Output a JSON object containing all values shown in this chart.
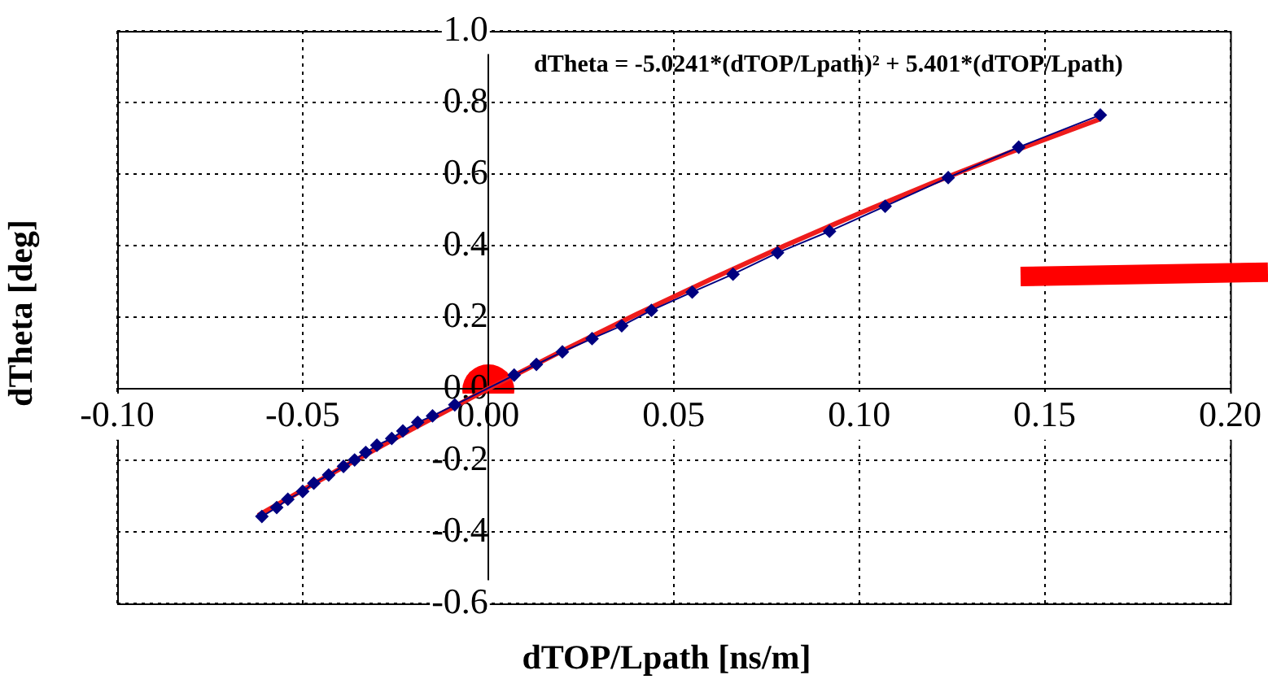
{
  "chart_data": {
    "type": "line",
    "xlabel": "dTOP/Lpath [ns/m]",
    "ylabel": "dTheta [deg]",
    "annotations": [
      "dTheta = -5.0241*(dTOP/Lpath)² + 5.401*(dTOP/Lpath)"
    ],
    "xlim": [
      -0.1,
      0.2
    ],
    "xticks": [
      {
        "value": -0.1,
        "label": "-0.10"
      },
      {
        "value": -0.05,
        "label": "-0.05"
      },
      {
        "value": 0,
        "label": "0.00"
      },
      {
        "value": 0.05,
        "label": "0.05"
      },
      {
        "value": 0.1,
        "label": "0.10"
      },
      {
        "value": 0.15,
        "label": "0.15"
      },
      {
        "value": 0.2,
        "label": "0.20"
      }
    ],
    "ylim": [
      -0.6,
      1.0
    ],
    "yticks": [
      {
        "value": -0.6,
        "label": "-0.6"
      },
      {
        "value": -0.4,
        "label": "-0.4"
      },
      {
        "value": -0.2,
        "label": "-0.2"
      },
      {
        "value": 0,
        "label": "0.0"
      },
      {
        "value": 0.2,
        "label": "0.2"
      },
      {
        "value": 0.4,
        "label": "0.4"
      },
      {
        "value": 0.6,
        "label": "0.6"
      },
      {
        "value": 0.8,
        "label": "0.8"
      },
      {
        "value": 1.0,
        "label": "1.0"
      }
    ],
    "grid": true,
    "legend": false,
    "marker": "diamond",
    "series": [
      {
        "color": "#000080",
        "x": [
          -0.061,
          -0.057,
          -0.054,
          -0.05,
          -0.047,
          -0.043,
          -0.039,
          -0.036,
          -0.033,
          -0.03,
          -0.026,
          -0.023,
          -0.019,
          -0.015,
          -0.009,
          0.007,
          0.013,
          0.02,
          0.028,
          0.036,
          0.044,
          0.055,
          0.066,
          0.078,
          0.092,
          0.107,
          0.124,
          0.143,
          0.165
        ],
        "values": [
          -0.357,
          -0.332,
          -0.309,
          -0.287,
          -0.264,
          -0.241,
          -0.217,
          -0.199,
          -0.178,
          -0.158,
          -0.139,
          -0.118,
          -0.094,
          -0.076,
          -0.045,
          0.038,
          0.068,
          0.103,
          0.14,
          0.176,
          0.219,
          0.27,
          0.32,
          0.38,
          0.44,
          0.51,
          0.59,
          0.675,
          0.765
        ]
      },
      {
        "color": "#ee1c1c",
        "marker": "none",
        "x": [
          -0.062,
          -0.04,
          -0.02,
          0,
          0.02,
          0.04,
          0.06,
          0.08,
          0.1,
          0.12,
          0.14,
          0.165
        ],
        "values": [
          -0.354,
          -0.224,
          -0.11,
          0,
          0.106,
          0.208,
          0.306,
          0.4,
          0.49,
          0.576,
          0.658,
          0.754
        ]
      }
    ]
  }
}
